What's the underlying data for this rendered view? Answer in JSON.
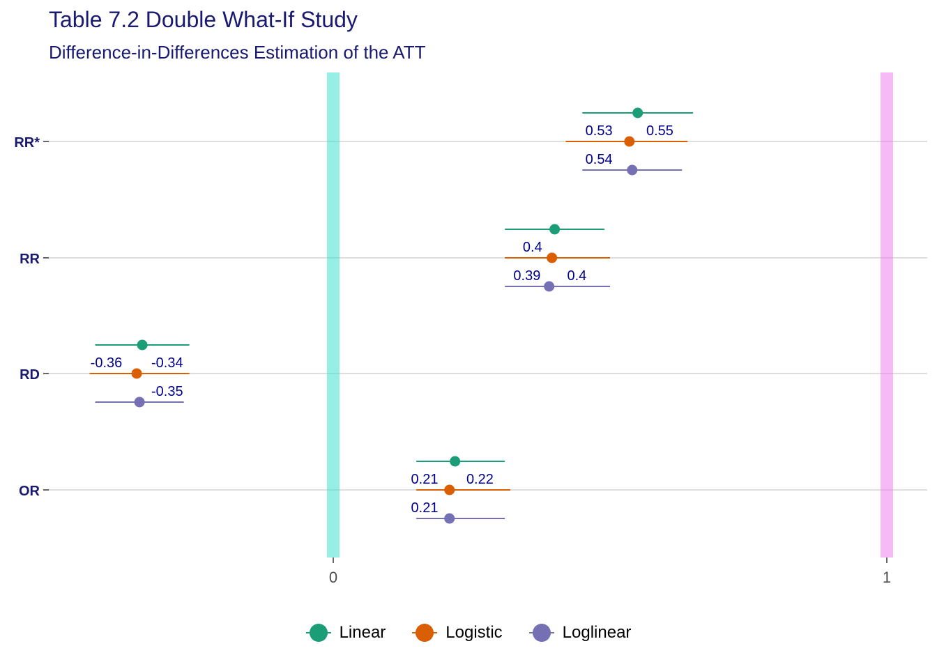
{
  "chart_data": {
    "type": "scatter",
    "title": "Table 7.2 Double What-If Study",
    "subtitle": "Difference-in-Differences Estimation of the ATT",
    "xlabel": "",
    "ylabel": "",
    "xlim": [
      -0.51,
      1.08
    ],
    "x_ticks": [
      0,
      1
    ],
    "x_tick_labels": [
      "0",
      "1"
    ],
    "categories": [
      "RR*",
      "RR",
      "RD",
      "OR"
    ],
    "reference_lines": [
      {
        "x": 0,
        "color": "#40E0D0"
      },
      {
        "x": 1,
        "color": "#EE82EE"
      }
    ],
    "grid": "horizontal",
    "legend_position": "bottom",
    "series": [
      {
        "name": "Linear",
        "color": "#1B9E77",
        "points": [
          {
            "category": "RR*",
            "estimate": 0.55,
            "lower": 0.45,
            "upper": 0.65
          },
          {
            "category": "RR",
            "estimate": 0.4,
            "lower": 0.31,
            "upper": 0.49
          },
          {
            "category": "RD",
            "estimate": -0.345,
            "lower": -0.43,
            "upper": -0.26
          },
          {
            "category": "OR",
            "estimate": 0.22,
            "lower": 0.15,
            "upper": 0.31
          }
        ]
      },
      {
        "name": "Logistic",
        "color": "#D95F02",
        "points": [
          {
            "category": "RR*",
            "estimate": 0.535,
            "lower": 0.42,
            "upper": 0.64
          },
          {
            "category": "RR",
            "estimate": 0.395,
            "lower": 0.31,
            "upper": 0.5
          },
          {
            "category": "RD",
            "estimate": -0.355,
            "lower": -0.44,
            "upper": -0.26
          },
          {
            "category": "OR",
            "estimate": 0.21,
            "lower": 0.15,
            "upper": 0.32
          }
        ]
      },
      {
        "name": "Loglinear",
        "color": "#7570B3",
        "points": [
          {
            "category": "RR*",
            "estimate": 0.54,
            "lower": 0.45,
            "upper": 0.63
          },
          {
            "category": "RR",
            "estimate": 0.39,
            "lower": 0.31,
            "upper": 0.5
          },
          {
            "category": "RD",
            "estimate": -0.35,
            "lower": -0.43,
            "upper": -0.27
          },
          {
            "category": "OR",
            "estimate": 0.21,
            "lower": 0.15,
            "upper": 0.31
          }
        ]
      }
    ],
    "labels": [
      {
        "category": "RR*",
        "text": "0.53",
        "x": 0.48,
        "offset": "logistic-above"
      },
      {
        "category": "RR*",
        "text": "0.55",
        "x": 0.59,
        "offset": "logistic-above"
      },
      {
        "category": "RR*",
        "text": "0.54",
        "x": 0.48,
        "offset": "linear-above"
      },
      {
        "category": "RR",
        "text": "0.4",
        "x": 0.36,
        "offset": "logistic-above"
      },
      {
        "category": "RR",
        "text": "0.39",
        "x": 0.35,
        "offset": "linear-above"
      },
      {
        "category": "RR",
        "text": "0.4",
        "x": 0.44,
        "offset": "linear-above"
      },
      {
        "category": "RD",
        "text": "-0.36",
        "x": -0.41,
        "offset": "logistic-above"
      },
      {
        "category": "RD",
        "text": "-0.34",
        "x": -0.3,
        "offset": "logistic-above"
      },
      {
        "category": "RD",
        "text": "-0.35",
        "x": -0.3,
        "offset": "linear-above"
      },
      {
        "category": "OR",
        "text": "0.21",
        "x": 0.165,
        "offset": "logistic-above"
      },
      {
        "category": "OR",
        "text": "0.22",
        "x": 0.265,
        "offset": "logistic-above"
      },
      {
        "category": "OR",
        "text": "0.21",
        "x": 0.165,
        "offset": "linear-above"
      }
    ]
  }
}
